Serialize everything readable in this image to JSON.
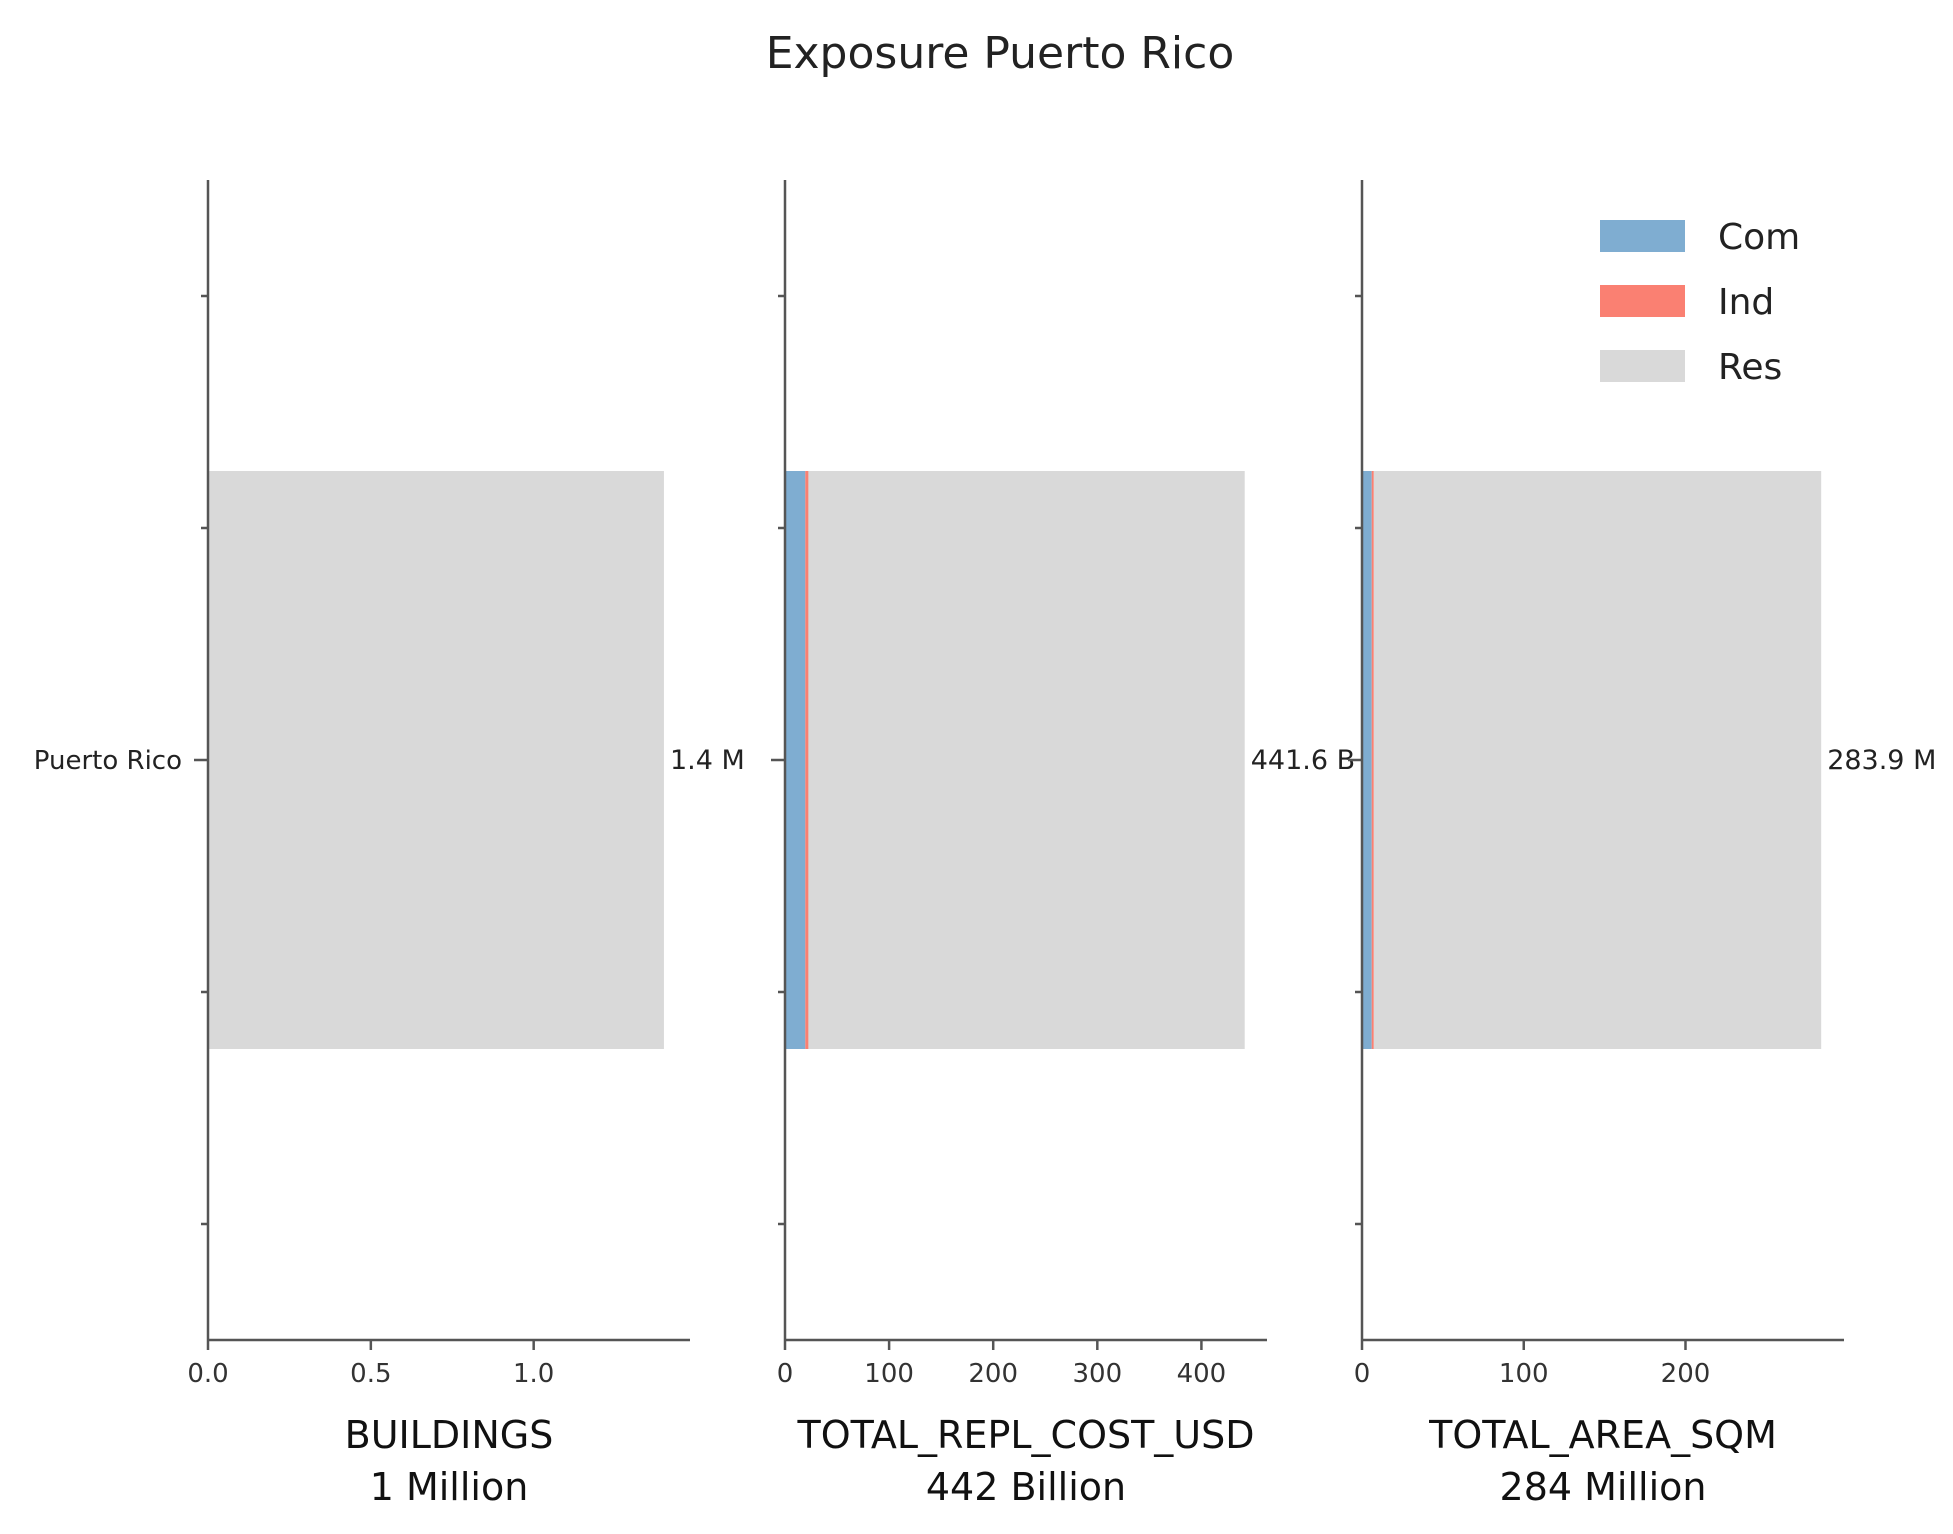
{
  "chart_data": {
    "type": "bar",
    "orientation": "horizontal",
    "stacked": true,
    "title": "Exposure Puerto Rico",
    "categories": [
      "Puerto Rico"
    ],
    "colors": {
      "Com": "#7fadd1",
      "Ind": "#fa8072",
      "Res": "#d9d9d9"
    },
    "legend": {
      "position": "top-right",
      "entries": [
        "Com",
        "Ind",
        "Res"
      ]
    },
    "grid": false,
    "panels": [
      {
        "xlabel": "BUILDINGS",
        "subtitle": "1 Million",
        "xlim": [
          0,
          1.48
        ],
        "xticks": [
          0.0,
          0.5,
          1.0
        ],
        "xtick_labels": [
          "0.0",
          "0.5",
          "1.0"
        ],
        "series": [
          {
            "name": "Com",
            "values": [
              0.0
            ]
          },
          {
            "name": "Ind",
            "values": [
              0.0
            ]
          },
          {
            "name": "Res",
            "values": [
              1.4
            ]
          }
        ],
        "total_label": "1.4 M"
      },
      {
        "xlabel": "TOTAL_REPL_COST_USD",
        "subtitle": "442 Billion",
        "xlim": [
          0,
          463
        ],
        "xticks": [
          0,
          100,
          200,
          300,
          400
        ],
        "xtick_labels": [
          "0",
          "100",
          "200",
          "300",
          "400"
        ],
        "series": [
          {
            "name": "Com",
            "values": [
              19.5
            ]
          },
          {
            "name": "Ind",
            "values": [
              3.0
            ]
          },
          {
            "name": "Res",
            "values": [
              419.1
            ]
          }
        ],
        "total_label": "441.6 B"
      },
      {
        "xlabel": "TOTAL_AREA_SQM",
        "subtitle": "284 Million",
        "xlim": [
          0,
          298
        ],
        "xticks": [
          0,
          100,
          200
        ],
        "xtick_labels": [
          "0",
          "100",
          "200"
        ],
        "series": [
          {
            "name": "Com",
            "values": [
              6.0
            ]
          },
          {
            "name": "Ind",
            "values": [
              1.3
            ]
          },
          {
            "name": "Res",
            "values": [
              276.6
            ]
          }
        ],
        "total_label": "283.9 M"
      }
    ]
  }
}
